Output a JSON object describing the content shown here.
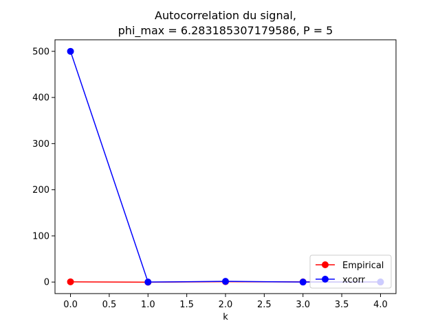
{
  "chart_data": {
    "type": "line",
    "title_lines": [
      "Autocorrelation du signal,",
      "phi_max = 6.283185307179586, P = 5"
    ],
    "xlabel": "k",
    "ylabel": "",
    "x": [
      0.0,
      1.0,
      2.0,
      3.0,
      4.0
    ],
    "xlim": [
      -0.2,
      4.2
    ],
    "ylim": [
      -25,
      525
    ],
    "xticks": [
      0.0,
      0.5,
      1.0,
      1.5,
      2.0,
      2.5,
      3.0,
      3.5,
      4.0
    ],
    "xtick_labels": [
      "0.0",
      "0.5",
      "1.0",
      "1.5",
      "2.0",
      "2.5",
      "3.0",
      "3.5",
      "4.0"
    ],
    "yticks": [
      0,
      100,
      200,
      300,
      400,
      500
    ],
    "ytick_labels": [
      "0",
      "100",
      "200",
      "300",
      "400",
      "500"
    ],
    "grid": false,
    "legend_position": "lower right",
    "series": [
      {
        "name": "Empirical",
        "color": "#ff0000",
        "marker": "circle",
        "values": [
          0.5,
          -0.3,
          0.8,
          0.2,
          0.0
        ]
      },
      {
        "name": "xcorr",
        "color": "#0000ff",
        "marker": "circle",
        "values": [
          500,
          0.0,
          1.5,
          0.0,
          0.2
        ]
      }
    ]
  }
}
